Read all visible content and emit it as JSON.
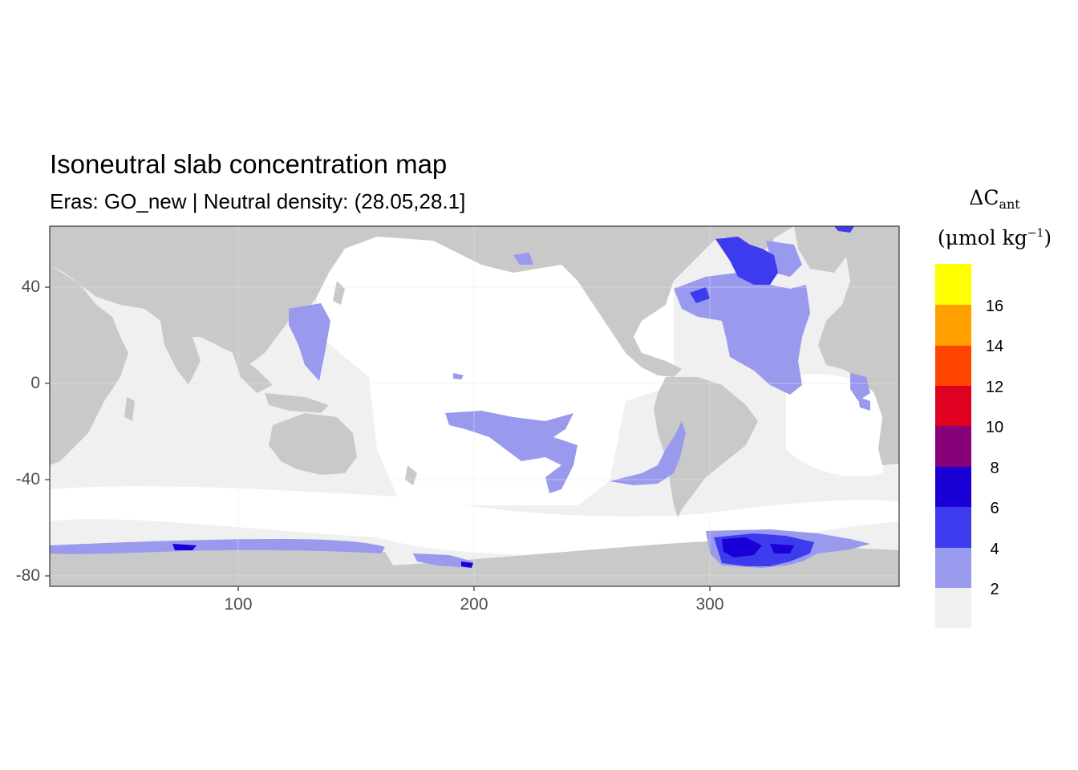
{
  "title": "Isoneutral slab concentration map",
  "subtitle": "Eras: GO_new | Neutral density: (28.05,28.1]",
  "axes": {
    "x_ticks": [
      "100",
      "200",
      "300"
    ],
    "y_ticks": [
      "40",
      "0",
      "-40",
      "-80"
    ],
    "x_range": [
      20,
      380
    ],
    "y_range": [
      -85,
      65
    ]
  },
  "legend": {
    "title_main": "ΔC",
    "title_sub": "ant",
    "unit_prefix": "(μmol kg",
    "unit_exp": "−1",
    "unit_suffix": ")",
    "labels": [
      "2",
      "4",
      "6",
      "8",
      "10",
      "12",
      "14",
      "16"
    ],
    "colors": [
      "#f0f0f0",
      "#9999ee",
      "#3c3cee",
      "#1a00d6",
      "#880077",
      "#e0001f",
      "#ff4500",
      "#ffa000",
      "#ffff00"
    ]
  },
  "map_colors": {
    "land": "#c9c9c9",
    "ocean_low": "#f0f0f0",
    "ocean_shelf": "#ffffff",
    "c2_4": "#9999ee",
    "c4_6": "#3c3cee",
    "c6_8": "#1a00d6"
  }
}
